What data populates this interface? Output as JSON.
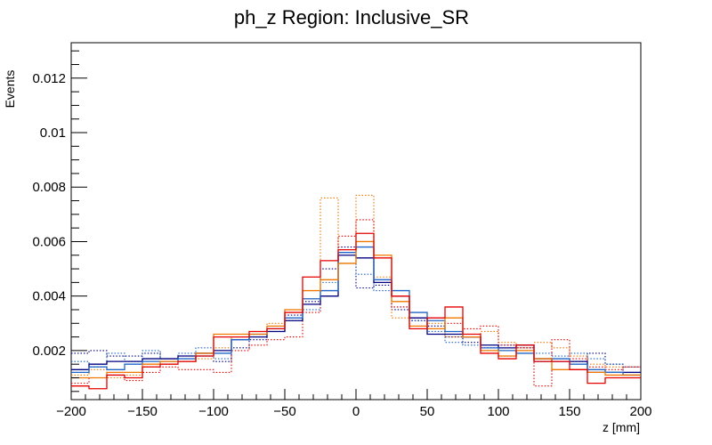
{
  "chart_data": {
    "type": "line",
    "title": "ph_z Region: Inclusive_SR",
    "xlabel": "z [mm]",
    "ylabel": "Events",
    "xlim": [
      -200,
      200
    ],
    "ylim": [
      0.0002,
      0.0133
    ],
    "x_ticks": [
      -200,
      -150,
      -100,
      -50,
      0,
      50,
      100,
      150,
      200
    ],
    "y_ticks": [
      0.002,
      0.004,
      0.006,
      0.008,
      0.01,
      0.012
    ],
    "y_tick_labels": [
      "0.002",
      "0.004",
      "0.006",
      "0.008",
      "0.01",
      "0.012"
    ],
    "grid": false,
    "legend": "none",
    "bin_edges": [
      -200,
      -187.5,
      -175,
      -162.5,
      -150,
      -137.5,
      -125,
      -112.5,
      -100,
      -87.5,
      -75,
      -62.5,
      -50,
      -37.5,
      -25,
      -12.5,
      0,
      12.5,
      25,
      37.5,
      50,
      62.5,
      75,
      87.5,
      100,
      112.5,
      125,
      137.5,
      150,
      162.5,
      175,
      187.5,
      200
    ],
    "series": [
      {
        "color": "#000080",
        "style": "solid",
        "values": [
          0.0013,
          0.0015,
          0.0016,
          0.0016,
          0.0017,
          0.0017,
          0.0018,
          0.0019,
          0.002,
          0.0024,
          0.0025,
          0.0027,
          0.0031,
          0.0037,
          0.004,
          0.0055,
          0.0054,
          0.0045,
          0.004,
          0.0032,
          0.0026,
          0.0026,
          0.0025,
          0.0022,
          0.0021,
          0.0022,
          0.0017,
          0.0016,
          0.0016,
          0.0012,
          0.0012,
          0.0012
        ]
      },
      {
        "color": "#1f64c8",
        "style": "solid",
        "values": [
          0.0012,
          0.0014,
          0.0013,
          0.0015,
          0.0016,
          0.0016,
          0.0017,
          0.0018,
          0.0019,
          0.0024,
          0.0026,
          0.0028,
          0.0032,
          0.0039,
          0.0042,
          0.0056,
          0.0058,
          0.0046,
          0.0042,
          0.0034,
          0.0031,
          0.0027,
          0.0025,
          0.0021,
          0.002,
          0.0019,
          0.0016,
          0.0017,
          0.0015,
          0.0013,
          0.0012,
          0.0011
        ]
      },
      {
        "color": "#f07800",
        "style": "solid",
        "values": [
          0.001,
          0.001,
          0.0012,
          0.0012,
          0.0015,
          0.0016,
          0.0016,
          0.0019,
          0.0026,
          0.0026,
          0.0026,
          0.0029,
          0.0035,
          0.0042,
          0.0046,
          0.0052,
          0.006,
          0.0055,
          0.0038,
          0.0029,
          0.0028,
          0.0032,
          0.0025,
          0.002,
          0.0018,
          0.002,
          0.0017,
          0.0013,
          0.0013,
          0.0012,
          0.0011,
          0.0011
        ]
      },
      {
        "color": "#e60000",
        "style": "solid",
        "values": [
          0.0007,
          0.0006,
          0.0011,
          0.001,
          0.0014,
          0.0015,
          0.0016,
          0.0018,
          0.0025,
          0.0025,
          0.0027,
          0.0028,
          0.0034,
          0.0047,
          0.0053,
          0.0057,
          0.0063,
          0.0054,
          0.004,
          0.0028,
          0.0032,
          0.0036,
          0.0026,
          0.0019,
          0.0017,
          0.0022,
          0.0016,
          0.0016,
          0.0013,
          0.0008,
          0.001,
          0.001
        ]
      },
      {
        "color": "#000080",
        "style": "dotted",
        "values": [
          0.0019,
          0.002,
          0.0018,
          0.0018,
          0.0019,
          0.0017,
          0.0016,
          0.0018,
          0.0016,
          0.0021,
          0.0024,
          0.0027,
          0.0033,
          0.0038,
          0.005,
          0.0058,
          0.0043,
          0.0044,
          0.0035,
          0.0031,
          0.0029,
          0.0025,
          0.0023,
          0.0021,
          0.0018,
          0.002,
          0.0016,
          0.0017,
          0.0016,
          0.0019,
          0.0015,
          0.0012
        ]
      },
      {
        "color": "#1f64c8",
        "style": "dotted",
        "values": [
          0.0016,
          0.0014,
          0.0019,
          0.0016,
          0.002,
          0.0017,
          0.0019,
          0.0021,
          0.0017,
          0.0024,
          0.0026,
          0.0027,
          0.0031,
          0.0035,
          0.0045,
          0.0052,
          0.0048,
          0.0042,
          0.0036,
          0.0031,
          0.0027,
          0.0023,
          0.0022,
          0.002,
          0.0022,
          0.0021,
          0.0019,
          0.0018,
          0.0019,
          0.0017,
          0.0015,
          0.0014
        ]
      },
      {
        "color": "#f07800",
        "style": "dotted",
        "values": [
          0.0011,
          0.0013,
          0.001,
          0.0011,
          0.0014,
          0.0017,
          0.0018,
          0.0017,
          0.0021,
          0.0025,
          0.0027,
          0.003,
          0.0035,
          0.0039,
          0.0076,
          0.0052,
          0.0077,
          0.0047,
          0.0032,
          0.0034,
          0.003,
          0.0025,
          0.0025,
          0.0027,
          0.0023,
          0.0021,
          0.0023,
          0.0021,
          0.0018,
          0.0015,
          0.0014,
          0.0014
        ]
      },
      {
        "color": "#e60000",
        "style": "dotted",
        "values": [
          0.0008,
          0.001,
          0.0011,
          0.0009,
          0.0012,
          0.0014,
          0.0013,
          0.0013,
          0.0012,
          0.002,
          0.0022,
          0.0024,
          0.0025,
          0.0034,
          0.0042,
          0.0062,
          0.0068,
          0.0046,
          0.0036,
          0.0032,
          0.0028,
          0.003,
          0.0028,
          0.0029,
          0.0022,
          0.0021,
          0.0007,
          0.0024,
          0.0017,
          0.0014,
          0.0013,
          0.0014
        ]
      }
    ]
  }
}
